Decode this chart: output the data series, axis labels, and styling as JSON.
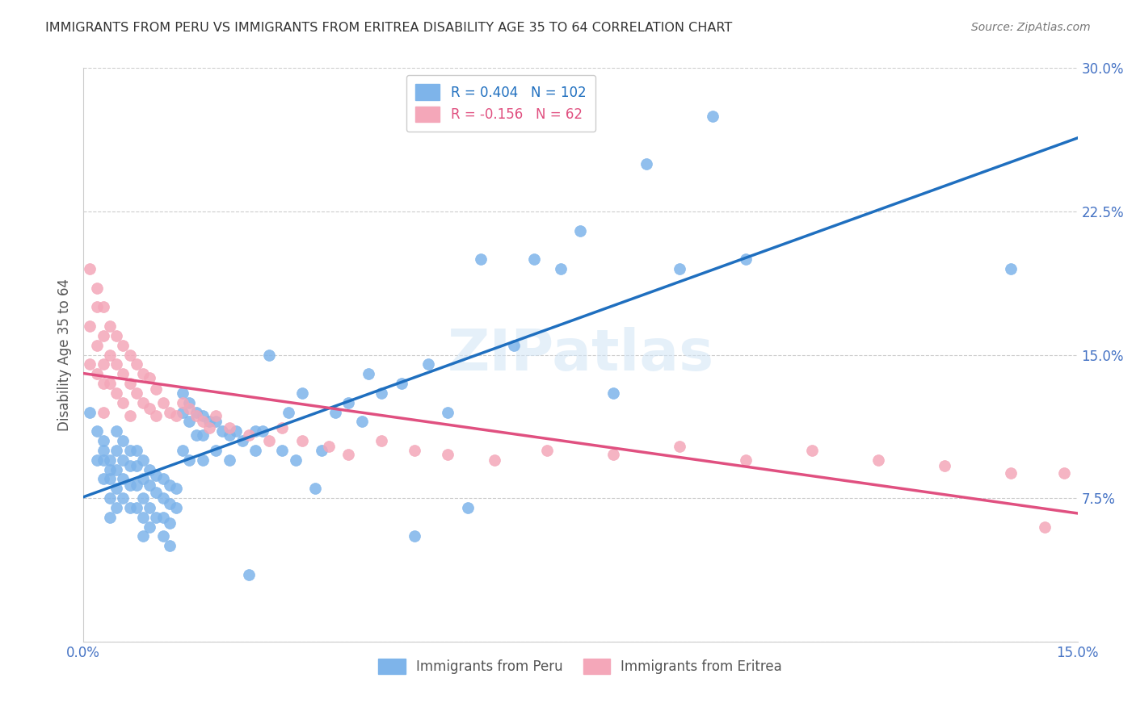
{
  "title": "IMMIGRANTS FROM PERU VS IMMIGRANTS FROM ERITREA DISABILITY AGE 35 TO 64 CORRELATION CHART",
  "source": "Source: ZipAtlas.com",
  "xlabel": "",
  "ylabel": "Disability Age 35 to 64",
  "xlim": [
    0.0,
    0.15
  ],
  "ylim": [
    0.0,
    0.3
  ],
  "xticks": [
    0.0,
    0.03,
    0.06,
    0.09,
    0.12,
    0.15
  ],
  "xticklabels": [
    "0.0%",
    "",
    "",
    "",
    "",
    "15.0%"
  ],
  "yticks": [
    0.0,
    0.075,
    0.15,
    0.225,
    0.3
  ],
  "yticklabels": [
    "",
    "7.5%",
    "15.0%",
    "22.5%",
    "30.0%"
  ],
  "peru_color": "#7EB4EA",
  "eritrea_color": "#F4A7B9",
  "peru_line_color": "#1F6FBF",
  "eritrea_line_color": "#E05080",
  "peru_R": 0.404,
  "peru_N": 102,
  "eritrea_R": -0.156,
  "eritrea_N": 62,
  "legend_label_peru": "Immigrants from Peru",
  "legend_label_eritrea": "Immigrants from Eritrea",
  "watermark": "ZIPatlas",
  "background_color": "#ffffff",
  "grid_color": "#cccccc",
  "title_color": "#333333",
  "axis_color": "#4472c4",
  "peru_scatter_x": [
    0.001,
    0.002,
    0.002,
    0.003,
    0.003,
    0.003,
    0.003,
    0.004,
    0.004,
    0.004,
    0.004,
    0.004,
    0.005,
    0.005,
    0.005,
    0.005,
    0.005,
    0.006,
    0.006,
    0.006,
    0.006,
    0.007,
    0.007,
    0.007,
    0.007,
    0.008,
    0.008,
    0.008,
    0.008,
    0.009,
    0.009,
    0.009,
    0.009,
    0.009,
    0.01,
    0.01,
    0.01,
    0.01,
    0.011,
    0.011,
    0.011,
    0.012,
    0.012,
    0.012,
    0.012,
    0.013,
    0.013,
    0.013,
    0.013,
    0.014,
    0.014,
    0.015,
    0.015,
    0.015,
    0.016,
    0.016,
    0.016,
    0.017,
    0.017,
    0.018,
    0.018,
    0.018,
    0.019,
    0.02,
    0.02,
    0.021,
    0.022,
    0.022,
    0.023,
    0.024,
    0.025,
    0.026,
    0.026,
    0.027,
    0.028,
    0.03,
    0.031,
    0.032,
    0.033,
    0.035,
    0.036,
    0.038,
    0.04,
    0.042,
    0.043,
    0.045,
    0.048,
    0.05,
    0.052,
    0.055,
    0.058,
    0.06,
    0.065,
    0.068,
    0.072,
    0.075,
    0.08,
    0.085,
    0.09,
    0.095,
    0.1,
    0.14
  ],
  "peru_scatter_y": [
    0.12,
    0.11,
    0.095,
    0.105,
    0.1,
    0.095,
    0.085,
    0.095,
    0.09,
    0.085,
    0.075,
    0.065,
    0.11,
    0.1,
    0.09,
    0.08,
    0.07,
    0.105,
    0.095,
    0.085,
    0.075,
    0.1,
    0.092,
    0.082,
    0.07,
    0.1,
    0.092,
    0.082,
    0.07,
    0.095,
    0.085,
    0.075,
    0.065,
    0.055,
    0.09,
    0.082,
    0.07,
    0.06,
    0.087,
    0.078,
    0.065,
    0.085,
    0.075,
    0.065,
    0.055,
    0.082,
    0.072,
    0.062,
    0.05,
    0.08,
    0.07,
    0.13,
    0.12,
    0.1,
    0.125,
    0.115,
    0.095,
    0.12,
    0.108,
    0.118,
    0.108,
    0.095,
    0.115,
    0.115,
    0.1,
    0.11,
    0.108,
    0.095,
    0.11,
    0.105,
    0.035,
    0.11,
    0.1,
    0.11,
    0.15,
    0.1,
    0.12,
    0.095,
    0.13,
    0.08,
    0.1,
    0.12,
    0.125,
    0.115,
    0.14,
    0.13,
    0.135,
    0.055,
    0.145,
    0.12,
    0.07,
    0.2,
    0.155,
    0.2,
    0.195,
    0.215,
    0.13,
    0.25,
    0.195,
    0.275,
    0.2,
    0.195
  ],
  "eritrea_scatter_x": [
    0.001,
    0.001,
    0.001,
    0.002,
    0.002,
    0.002,
    0.002,
    0.003,
    0.003,
    0.003,
    0.003,
    0.003,
    0.004,
    0.004,
    0.004,
    0.005,
    0.005,
    0.005,
    0.006,
    0.006,
    0.006,
    0.007,
    0.007,
    0.007,
    0.008,
    0.008,
    0.009,
    0.009,
    0.01,
    0.01,
    0.011,
    0.011,
    0.012,
    0.013,
    0.014,
    0.015,
    0.016,
    0.017,
    0.018,
    0.019,
    0.02,
    0.022,
    0.025,
    0.028,
    0.03,
    0.033,
    0.037,
    0.04,
    0.045,
    0.05,
    0.055,
    0.062,
    0.07,
    0.08,
    0.09,
    0.1,
    0.11,
    0.12,
    0.13,
    0.14,
    0.145,
    0.148
  ],
  "eritrea_scatter_y": [
    0.195,
    0.165,
    0.145,
    0.185,
    0.175,
    0.155,
    0.14,
    0.175,
    0.16,
    0.145,
    0.135,
    0.12,
    0.165,
    0.15,
    0.135,
    0.16,
    0.145,
    0.13,
    0.155,
    0.14,
    0.125,
    0.15,
    0.135,
    0.118,
    0.145,
    0.13,
    0.14,
    0.125,
    0.138,
    0.122,
    0.132,
    0.118,
    0.125,
    0.12,
    0.118,
    0.125,
    0.122,
    0.118,
    0.115,
    0.112,
    0.118,
    0.112,
    0.108,
    0.105,
    0.112,
    0.105,
    0.102,
    0.098,
    0.105,
    0.1,
    0.098,
    0.095,
    0.1,
    0.098,
    0.102,
    0.095,
    0.1,
    0.095,
    0.092,
    0.088,
    0.06,
    0.088
  ]
}
